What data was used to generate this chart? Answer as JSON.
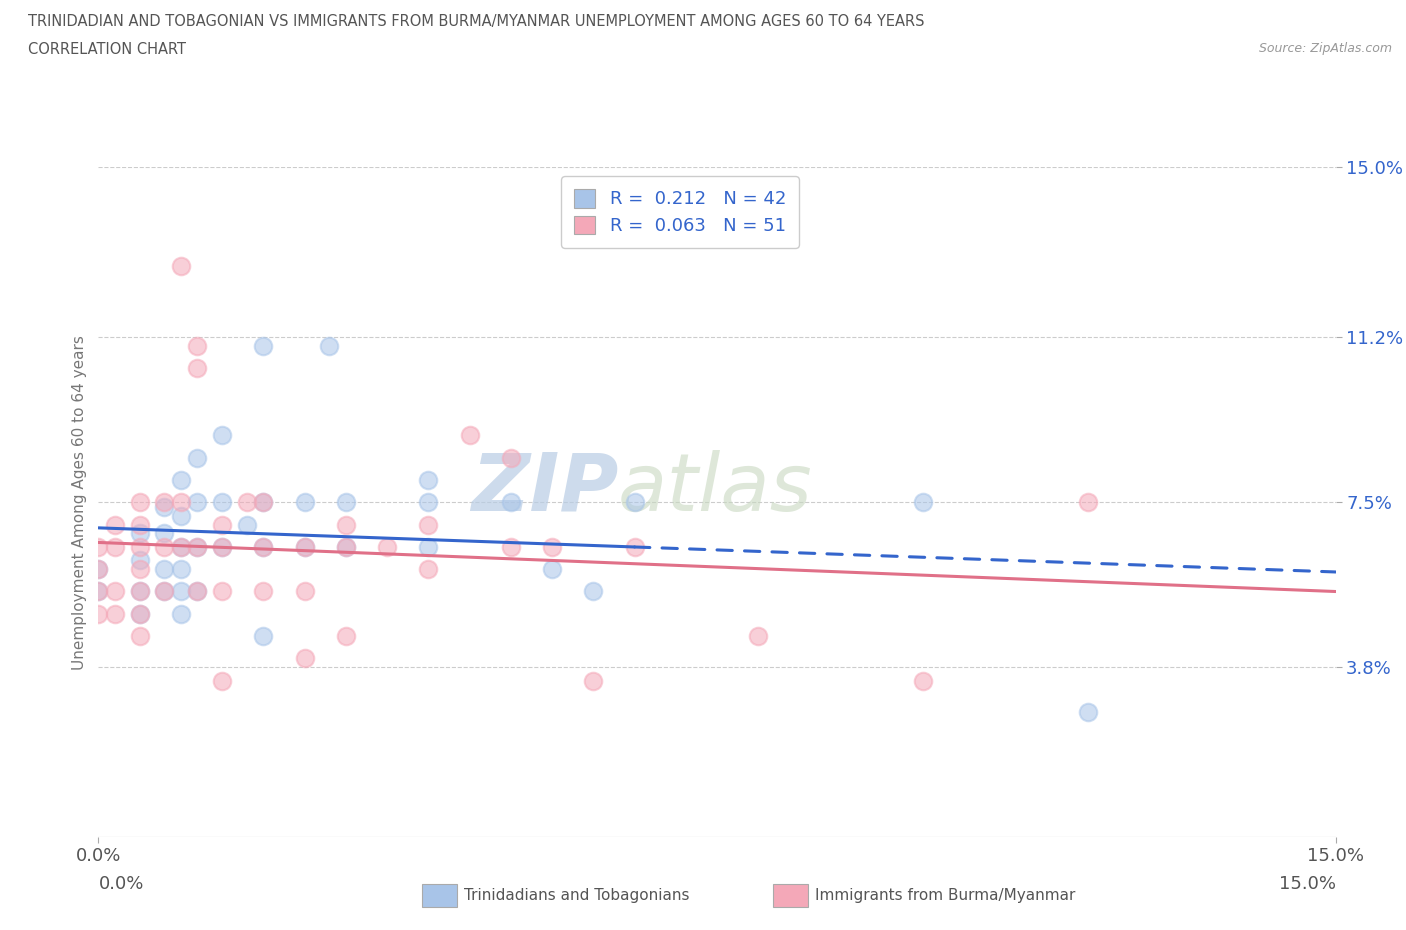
{
  "title_line1": "TRINIDADIAN AND TOBAGONIAN VS IMMIGRANTS FROM BURMA/MYANMAR UNEMPLOYMENT AMONG AGES 60 TO 64 YEARS",
  "title_line2": "CORRELATION CHART",
  "source_text": "Source: ZipAtlas.com",
  "ylabel": "Unemployment Among Ages 60 to 64 years",
  "xmin": 0.0,
  "xmax": 0.15,
  "ymin": 0.0,
  "ymax": 0.15,
  "yticks": [
    0.038,
    0.075,
    0.112,
    0.15
  ],
  "ytick_labels": [
    "3.8%",
    "7.5%",
    "11.2%",
    "15.0%"
  ],
  "xtick_labels": [
    "0.0%",
    "15.0%"
  ],
  "legend_blue_R": "0.212",
  "legend_blue_N": "42",
  "legend_pink_R": "0.063",
  "legend_pink_N": "51",
  "blue_color": "#a8c4e8",
  "pink_color": "#f4a8b8",
  "blue_line_color": "#3465cc",
  "pink_line_color": "#e07088",
  "blue_scatter": [
    [
      0.0,
      0.06
    ],
    [
      0.0,
      0.055
    ],
    [
      0.005,
      0.068
    ],
    [
      0.005,
      0.062
    ],
    [
      0.005,
      0.055
    ],
    [
      0.005,
      0.05
    ],
    [
      0.008,
      0.074
    ],
    [
      0.008,
      0.068
    ],
    [
      0.008,
      0.06
    ],
    [
      0.008,
      0.055
    ],
    [
      0.01,
      0.08
    ],
    [
      0.01,
      0.072
    ],
    [
      0.01,
      0.065
    ],
    [
      0.01,
      0.06
    ],
    [
      0.01,
      0.055
    ],
    [
      0.01,
      0.05
    ],
    [
      0.012,
      0.085
    ],
    [
      0.012,
      0.075
    ],
    [
      0.012,
      0.065
    ],
    [
      0.012,
      0.055
    ],
    [
      0.015,
      0.09
    ],
    [
      0.015,
      0.075
    ],
    [
      0.015,
      0.065
    ],
    [
      0.018,
      0.07
    ],
    [
      0.02,
      0.11
    ],
    [
      0.02,
      0.075
    ],
    [
      0.02,
      0.065
    ],
    [
      0.02,
      0.045
    ],
    [
      0.025,
      0.075
    ],
    [
      0.025,
      0.065
    ],
    [
      0.028,
      0.11
    ],
    [
      0.03,
      0.075
    ],
    [
      0.03,
      0.065
    ],
    [
      0.04,
      0.08
    ],
    [
      0.04,
      0.075
    ],
    [
      0.04,
      0.065
    ],
    [
      0.05,
      0.075
    ],
    [
      0.055,
      0.06
    ],
    [
      0.06,
      0.055
    ],
    [
      0.065,
      0.075
    ],
    [
      0.1,
      0.075
    ],
    [
      0.12,
      0.028
    ]
  ],
  "pink_scatter": [
    [
      0.0,
      0.065
    ],
    [
      0.0,
      0.06
    ],
    [
      0.0,
      0.055
    ],
    [
      0.0,
      0.05
    ],
    [
      0.002,
      0.07
    ],
    [
      0.002,
      0.065
    ],
    [
      0.002,
      0.055
    ],
    [
      0.002,
      0.05
    ],
    [
      0.005,
      0.075
    ],
    [
      0.005,
      0.07
    ],
    [
      0.005,
      0.065
    ],
    [
      0.005,
      0.06
    ],
    [
      0.005,
      0.055
    ],
    [
      0.005,
      0.05
    ],
    [
      0.005,
      0.045
    ],
    [
      0.008,
      0.075
    ],
    [
      0.008,
      0.065
    ],
    [
      0.008,
      0.055
    ],
    [
      0.01,
      0.128
    ],
    [
      0.01,
      0.075
    ],
    [
      0.01,
      0.065
    ],
    [
      0.012,
      0.11
    ],
    [
      0.012,
      0.105
    ],
    [
      0.012,
      0.065
    ],
    [
      0.012,
      0.055
    ],
    [
      0.015,
      0.07
    ],
    [
      0.015,
      0.065
    ],
    [
      0.015,
      0.055
    ],
    [
      0.015,
      0.035
    ],
    [
      0.018,
      0.075
    ],
    [
      0.02,
      0.075
    ],
    [
      0.02,
      0.065
    ],
    [
      0.02,
      0.055
    ],
    [
      0.025,
      0.065
    ],
    [
      0.025,
      0.055
    ],
    [
      0.025,
      0.04
    ],
    [
      0.03,
      0.07
    ],
    [
      0.03,
      0.065
    ],
    [
      0.03,
      0.045
    ],
    [
      0.035,
      0.065
    ],
    [
      0.04,
      0.07
    ],
    [
      0.04,
      0.06
    ],
    [
      0.045,
      0.09
    ],
    [
      0.05,
      0.085
    ],
    [
      0.05,
      0.065
    ],
    [
      0.055,
      0.065
    ],
    [
      0.06,
      0.035
    ],
    [
      0.065,
      0.065
    ],
    [
      0.08,
      0.045
    ],
    [
      0.1,
      0.035
    ],
    [
      0.12,
      0.075
    ]
  ],
  "background_color": "#ffffff",
  "watermark_text_ZIP": "ZIP",
  "watermark_text_atlas": "atlas",
  "grid_color": "#cccccc",
  "bottom_legend_blue_label": "Trinidadians and Tobagonians",
  "bottom_legend_pink_label": "Immigrants from Burma/Myanmar"
}
